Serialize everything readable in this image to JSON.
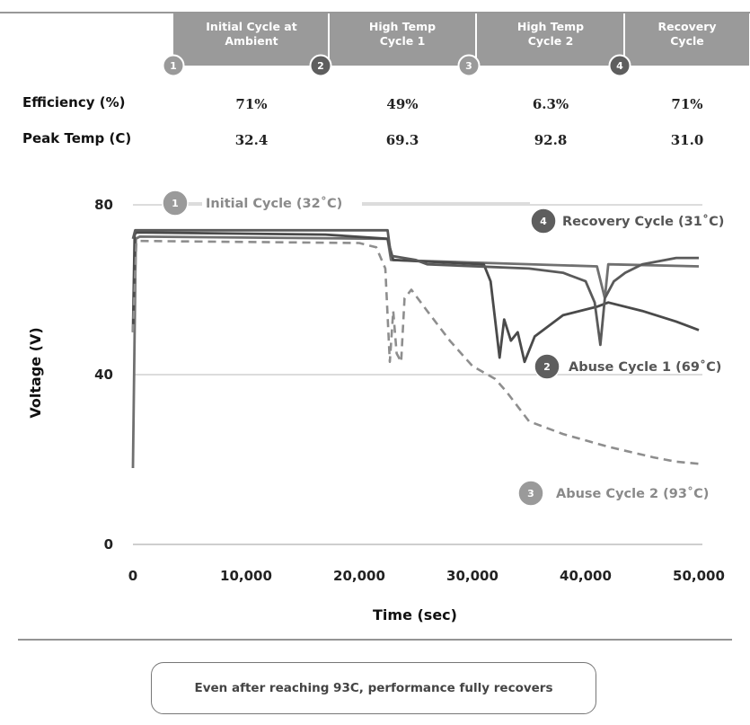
{
  "stages": [
    {
      "number": "1",
      "title_lines": [
        "Initial Cycle at",
        "Ambient"
      ]
    },
    {
      "number": "2",
      "title_lines": [
        "High Temp",
        "Cycle 1"
      ]
    },
    {
      "number": "3",
      "title_lines": [
        "High Temp",
        "Cycle 2"
      ]
    },
    {
      "number": "4",
      "title_lines": [
        "Recovery",
        "Cycle"
      ]
    }
  ],
  "summary_rows": [
    {
      "label": "Efficiency (%)",
      "values": [
        "71%",
        "49%",
        "6.3%",
        "71%"
      ]
    },
    {
      "label": "Peak Temp (C)",
      "values": [
        "32.4",
        "69.3",
        "92.8",
        "31.0"
      ]
    }
  ],
  "colors": {
    "header_fill": "#9a9a9a",
    "badge_light": "#9a9a9a",
    "badge_dark": "#5e5e5e",
    "series_initial": "#707070",
    "series_abuse1": "#4a4a4a",
    "series_abuse2": "#8e8e8e",
    "series_recovery": "#5a5a5a",
    "grid": "#c8c8c8"
  },
  "chart_data": {
    "type": "line",
    "title": "",
    "xlabel": "Time (sec)",
    "ylabel": "Voltage (V)",
    "xlim": [
      0,
      50000
    ],
    "ylim": [
      0,
      80
    ],
    "x_ticks": [
      0,
      10000,
      20000,
      30000,
      40000,
      50000
    ],
    "x_tick_labels": [
      "0",
      "10,000",
      "20,000",
      "30,000",
      "40,000",
      "50,000"
    ],
    "y_ticks": [
      0,
      40,
      80
    ],
    "y_tick_labels": [
      "0",
      "40",
      "80"
    ],
    "grid": "horizontal",
    "series": [
      {
        "id": "initial",
        "style": "solid",
        "annotation": {
          "number": "1",
          "text": "Initial Cycle (32˚C)"
        },
        "x": [
          0,
          250,
          600,
          22500,
          22800,
          41000,
          41700,
          42000,
          50000
        ],
        "y": [
          18,
          72,
          72.5,
          72,
          67,
          65.5,
          58,
          66,
          65.5
        ]
      },
      {
        "id": "abuse1",
        "style": "solid",
        "annotation": {
          "number": "2",
          "text": "Abuse Cycle 1 (69˚C)"
        },
        "x": [
          0,
          150,
          300,
          17000,
          22500,
          23000,
          31000,
          31600,
          32400,
          32800,
          33400,
          34000,
          34600,
          35500,
          38000,
          41000,
          42000,
          45000,
          48000,
          50000
        ],
        "y": [
          50,
          73,
          73.5,
          73,
          72,
          67,
          66,
          62,
          44,
          53,
          48,
          50,
          43,
          49,
          54,
          56,
          57,
          55,
          52.5,
          50.5
        ]
      },
      {
        "id": "abuse2",
        "style": "dashed",
        "annotation": {
          "number": "3",
          "text": "Abuse Cycle 2 (93˚C)"
        },
        "x": [
          0,
          300,
          500,
          20000,
          21500,
          22300,
          22700,
          23000,
          23300,
          23700,
          24000,
          24600,
          26000,
          28000,
          30000,
          32000,
          33000,
          35000,
          38000,
          42000,
          46000,
          48000,
          50000
        ],
        "y": [
          50,
          71,
          71.5,
          71,
          70,
          65,
          43,
          55,
          45,
          43,
          58,
          60,
          55,
          48,
          42,
          39,
          36,
          29,
          26,
          23,
          20.5,
          19.5,
          19
        ]
      },
      {
        "id": "recovery",
        "style": "solid",
        "annotation": {
          "number": "4",
          "text": "Recovery Cycle (31˚C)"
        },
        "x": [
          0,
          200,
          500,
          22500,
          22800,
          25000,
          26000,
          35000,
          38000,
          40000,
          40800,
          41300,
          41700,
          42500,
          43500,
          45000,
          48000,
          50000
        ],
        "y": [
          72,
          74,
          74,
          74,
          68,
          67,
          66,
          65,
          64,
          62,
          57,
          47,
          58,
          62,
          64,
          66,
          67.5,
          67.5
        ]
      }
    ]
  },
  "note": "Even after reaching 93C, performance fully recovers"
}
